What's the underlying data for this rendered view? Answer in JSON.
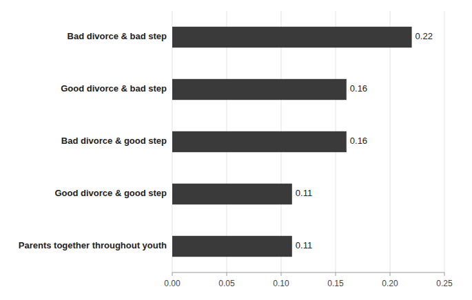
{
  "chart_data": {
    "type": "bar",
    "orientation": "horizontal",
    "categories": [
      "Parents together throughout youth",
      "Good divorce & good step",
      "Bad divorce & good step",
      "Good divorce & bad step",
      "Bad divorce & bad step"
    ],
    "values": [
      0.11,
      0.11,
      0.16,
      0.16,
      0.22
    ],
    "color": "#3a3a3a",
    "xlim": [
      0,
      0.25
    ],
    "xticks": [
      {
        "value": 0,
        "label": "0.00"
      },
      0.05,
      {
        "value": 0.1,
        "label": "0.10"
      },
      0.15,
      {
        "value": 0.2,
        "label": "0.20"
      },
      0.25
    ],
    "grid": true,
    "data_labels": true
  }
}
